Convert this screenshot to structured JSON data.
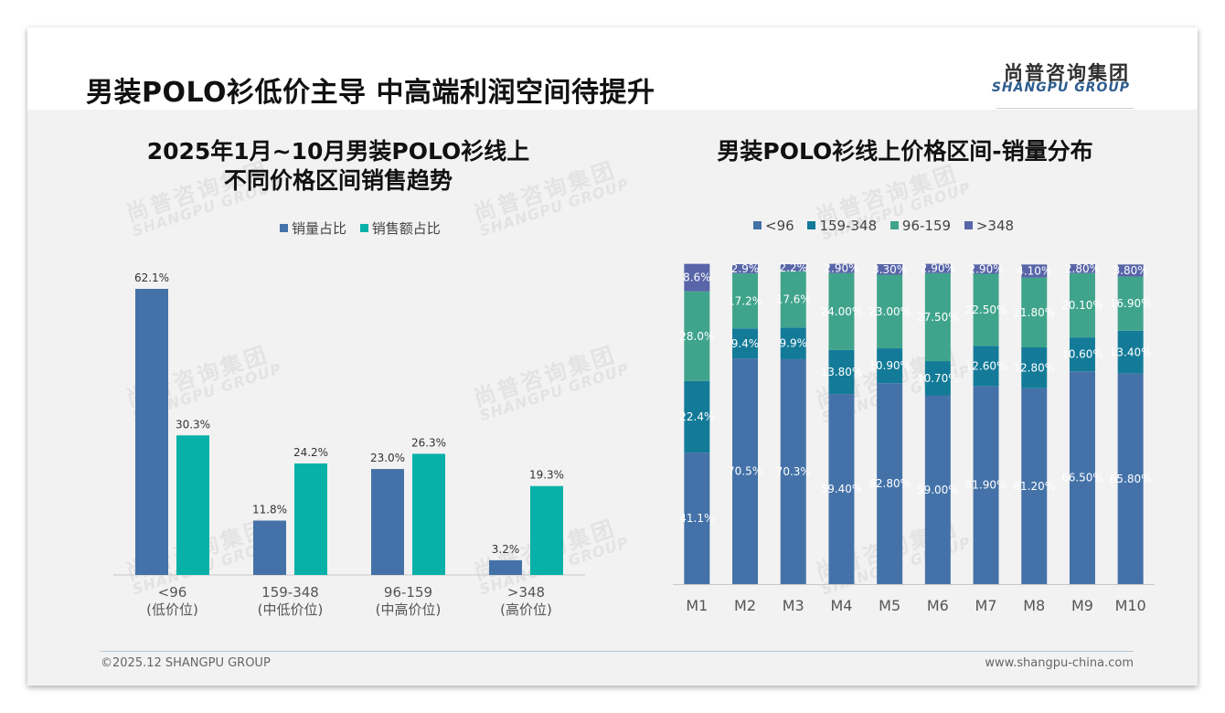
{
  "header": {
    "title": "男装POLO衫低价主导 中高端利润空间待提升",
    "logo_cn": "尚普咨询集团",
    "logo_en": "SHANGPU GROUP"
  },
  "watermark": {
    "cn": "尚普咨询集团",
    "en": "SHANGPU GROUP"
  },
  "footer": {
    "copyright": "©2025.12 SHANGPU GROUP",
    "website": "www.shangpu-china.com"
  },
  "colors": {
    "blue": "#4472a8",
    "teal": "#08b1a8",
    "s_lt96": "#4472a8",
    "s_159_348": "#137b98",
    "s_96_159": "#40a48c",
    "s_gt348": "#5865a8"
  },
  "chart_data": [
    {
      "type": "bar",
      "title_line1": "2025年1月~10月男装POLO衫线上",
      "title_line2": "不同价格区间销售趋势",
      "categories": [
        "<96",
        "159-348",
        "96-159",
        ">348"
      ],
      "category_sublabels": [
        "(低价位)",
        "(中低价位)",
        "(中高价位)",
        "(高价位)"
      ],
      "series": [
        {
          "name": "销量占比",
          "values": [
            62.1,
            11.8,
            23.0,
            3.2
          ],
          "labels": [
            "62.1%",
            "11.8%",
            "23.0%",
            "3.2%"
          ],
          "color": "#4472a8"
        },
        {
          "name": "销售额占比",
          "values": [
            30.3,
            24.2,
            26.3,
            19.3
          ],
          "labels": [
            "30.3%",
            "24.2%",
            "26.3%",
            "19.3%"
          ],
          "color": "#08b1a8"
        }
      ],
      "ylim": [
        0,
        62.1
      ],
      "grid": false,
      "legend": "top"
    },
    {
      "type": "bar",
      "stacked": true,
      "title": "男装POLO衫线上价格区间-销量分布",
      "categories": [
        "M1",
        "M2",
        "M3",
        "M4",
        "M5",
        "M6",
        "M7",
        "M8",
        "M9",
        "M10"
      ],
      "legend_order": [
        "<96",
        "159-348",
        "96-159",
        ">348"
      ],
      "series": [
        {
          "name": "<96",
          "color": "#4472a8",
          "values": [
            41.1,
            70.5,
            70.3,
            59.4,
            62.8,
            59.0,
            61.9,
            61.2,
            66.5,
            65.8
          ],
          "labels": [
            "41.1%",
            "70.5%",
            "70.3%",
            "59.40%",
            "62.80%",
            "59.00%",
            "61.90%",
            "61.20%",
            "66.50%",
            "65.80%"
          ]
        },
        {
          "name": "159-348",
          "color": "#137b98",
          "values": [
            22.4,
            9.4,
            9.9,
            13.8,
            10.9,
            10.7,
            12.6,
            12.8,
            10.6,
            13.4
          ],
          "labels": [
            "22.4%",
            "9.4%",
            "9.9%",
            "13.80%",
            "10.90%",
            "10.70%",
            "12.60%",
            "12.80%",
            "10.60%",
            "13.40%"
          ]
        },
        {
          "name": "96-159",
          "color": "#40a48c",
          "values": [
            28.0,
            17.2,
            17.6,
            24.0,
            23.0,
            27.5,
            22.5,
            21.8,
            20.1,
            16.9
          ],
          "labels": [
            "28.0%",
            "17.2%",
            "17.6%",
            "24.00%",
            "23.00%",
            "27.50%",
            "22.50%",
            "21.80%",
            "20.10%",
            "16.90%"
          ]
        },
        {
          "name": ">348",
          "color": "#5865a8",
          "values": [
            8.6,
            2.9,
            2.2,
            2.9,
            3.3,
            2.9,
            2.9,
            4.1,
            2.8,
            3.8
          ],
          "labels": [
            "8.6%",
            "2.9%",
            "2.2%",
            "2.90%",
            "3.30%",
            "2.90%",
            "2.90%",
            "4.10%",
            "2.80%",
            "3.80%"
          ]
        }
      ],
      "ylim": [
        0,
        100
      ],
      "grid": false,
      "legend": "top"
    }
  ]
}
